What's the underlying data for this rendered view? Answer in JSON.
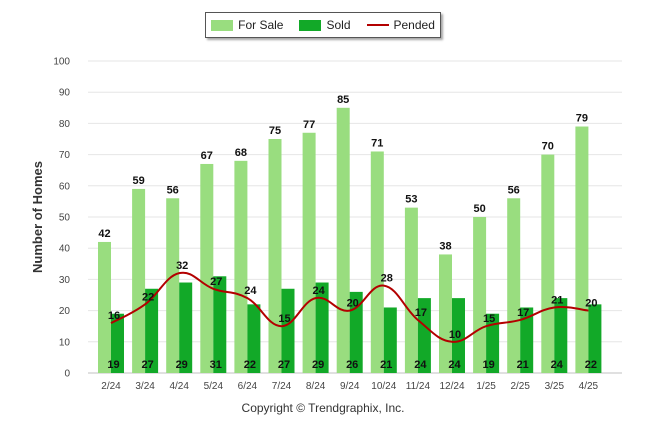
{
  "chart_data": {
    "type": "bar",
    "ylabel": "Number of Homes",
    "ylim": [
      0,
      100
    ],
    "yticks": [
      0,
      10,
      20,
      30,
      40,
      50,
      60,
      70,
      80,
      90,
      100
    ],
    "grid": true,
    "legend_position": "top-center",
    "categories": [
      "2/24",
      "3/24",
      "4/24",
      "5/24",
      "6/24",
      "7/24",
      "8/24",
      "9/24",
      "10/24",
      "11/24",
      "12/24",
      "1/25",
      "2/25",
      "3/25",
      "4/25"
    ],
    "series": [
      {
        "name": "For Sale",
        "type": "bar",
        "color": "#99dd7f",
        "values": [
          42,
          59,
          56,
          67,
          68,
          75,
          77,
          85,
          71,
          53,
          38,
          50,
          56,
          70,
          79
        ]
      },
      {
        "name": "Sold",
        "type": "bar",
        "color": "#12a928",
        "values": [
          19,
          27,
          29,
          31,
          22,
          27,
          29,
          26,
          21,
          24,
          24,
          19,
          21,
          24,
          22
        ]
      },
      {
        "name": "Pended",
        "type": "line",
        "color": "#b30000",
        "values": [
          16,
          22,
          32,
          27,
          24,
          15,
          24,
          20,
          28,
          17,
          10,
          15,
          17,
          21,
          20
        ]
      }
    ]
  },
  "footer": "Copyright © Trendgraphix, Inc."
}
